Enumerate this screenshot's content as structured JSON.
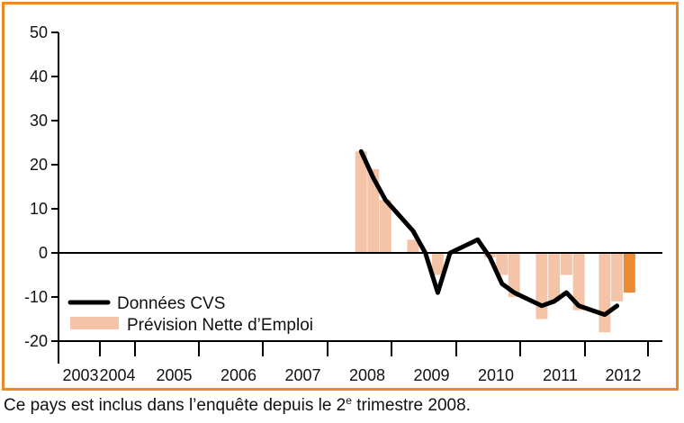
{
  "footnote": {
    "prefix": "Ce pays est inclus dans l’enquête depuis le 2",
    "superscript": "e",
    "suffix": " trimestre 2008."
  },
  "chart_data": {
    "type": "bar",
    "title": "",
    "xlabel": "",
    "ylabel": "",
    "ylim": [
      -20,
      50
    ],
    "yticks": [
      50,
      40,
      30,
      20,
      10,
      0,
      -10,
      -20
    ],
    "xtick_labels": [
      "2003",
      "2004",
      "2005",
      "2006",
      "2007",
      "2008",
      "2009",
      "2010",
      "2011",
      "2012"
    ],
    "legend_position": "bottom-left",
    "colors": {
      "bar": "#f5c4a8",
      "bar_highlight": "#ee8a33",
      "line": "#000000",
      "frame": "#e8892a"
    },
    "series": [
      {
        "name": "Données CVS",
        "kind": "line",
        "x": [
          "2008-Q2",
          "2008-Q3",
          "2008-Q4",
          "2009-Q1",
          "2009-Q2",
          "2009-Q3",
          "2009-Q4",
          "2010-Q1",
          "2010-Q2",
          "2010-Q3",
          "2010-Q4",
          "2011-Q1",
          "2011-Q2",
          "2011-Q3",
          "2011-Q4",
          "2012-Q1",
          "2012-Q2"
        ],
        "values": [
          23,
          17,
          12,
          5,
          0,
          -9,
          0,
          3,
          -1,
          -7,
          -9,
          -12,
          -11,
          -9,
          -12,
          -14,
          -12
        ]
      },
      {
        "name": "Prévision Nette d’Emploi",
        "kind": "bar",
        "x": [
          "2008-Q2",
          "2008-Q3",
          "2008-Q4",
          "2009-Q1",
          "2009-Q2",
          "2009-Q3",
          "2009-Q4",
          "2010-Q1",
          "2010-Q2",
          "2010-Q3",
          "2010-Q4",
          "2011-Q1",
          "2011-Q2",
          "2011-Q3",
          "2011-Q4",
          "2012-Q1",
          "2012-Q2"
        ],
        "values": [
          23,
          19,
          12,
          3,
          0,
          -5,
          0,
          0,
          -1,
          -5,
          -10,
          -15,
          -11,
          -5,
          -13,
          -18,
          -11
        ]
      },
      {
        "name": "",
        "kind": "bar-highlight",
        "x": [
          "2012-Q3"
        ],
        "values": [
          -9
        ]
      }
    ]
  }
}
